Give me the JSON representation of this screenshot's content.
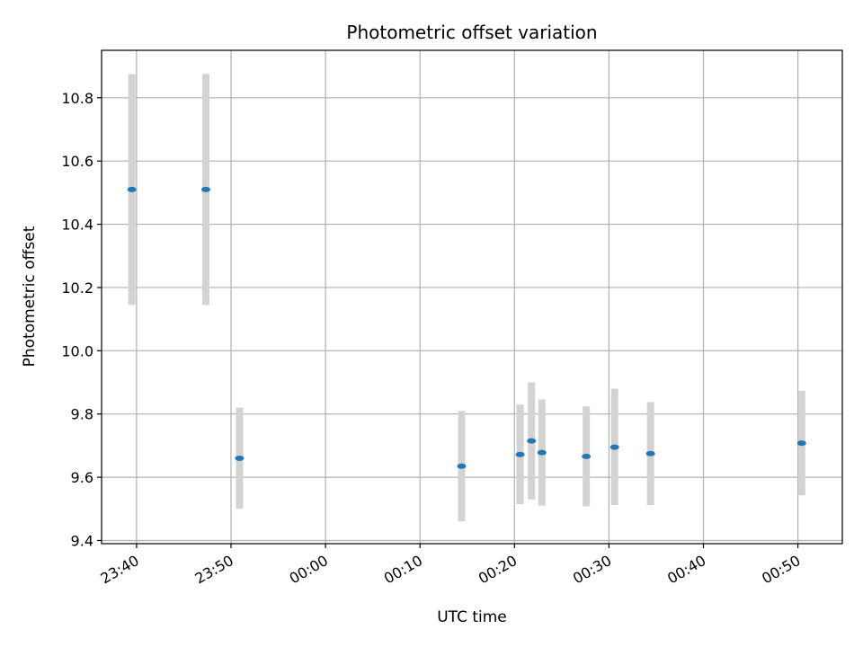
{
  "chart_data": {
    "type": "scatter",
    "title": "Photometric offset variation",
    "xlabel": "UTC time",
    "ylabel": "Photometric offset",
    "x_unit": "UTC time (HH:MM)",
    "xlim": [
      "23:36:18",
      "00:54:42"
    ],
    "ylim": [
      9.39,
      10.95
    ],
    "x_ticks": [
      "23:40",
      "23:50",
      "00:00",
      "00:10",
      "00:20",
      "00:30",
      "00:40",
      "00:50"
    ],
    "y_ticks": [
      "9.4",
      "9.6",
      "9.8",
      "10.0",
      "10.2",
      "10.4",
      "10.6",
      "10.8"
    ],
    "grid": true,
    "marker_color": "#1f77b4",
    "errorbar_color": "#d3d3d3",
    "points": [
      {
        "x": "23:39:30",
        "y": 10.51,
        "ylow": 10.145,
        "yhigh": 10.875
      },
      {
        "x": "23:47:20",
        "y": 10.51,
        "ylow": 10.145,
        "yhigh": 10.875
      },
      {
        "x": "23:50:54",
        "y": 9.66,
        "ylow": 9.5,
        "yhigh": 9.82
      },
      {
        "x": "00:14:24",
        "y": 9.635,
        "ylow": 9.46,
        "yhigh": 9.81
      },
      {
        "x": "00:20:36",
        "y": 9.672,
        "ylow": 9.515,
        "yhigh": 9.83
      },
      {
        "x": "00:21:48",
        "y": 9.715,
        "ylow": 9.53,
        "yhigh": 9.9
      },
      {
        "x": "00:22:54",
        "y": 9.678,
        "ylow": 9.51,
        "yhigh": 9.846
      },
      {
        "x": "00:27:36",
        "y": 9.666,
        "ylow": 9.508,
        "yhigh": 9.824
      },
      {
        "x": "00:30:36",
        "y": 9.695,
        "ylow": 9.512,
        "yhigh": 9.88
      },
      {
        "x": "00:34:24",
        "y": 9.675,
        "ylow": 9.512,
        "yhigh": 9.838
      },
      {
        "x": "00:50:24",
        "y": 9.708,
        "ylow": 9.543,
        "yhigh": 9.873
      }
    ]
  }
}
